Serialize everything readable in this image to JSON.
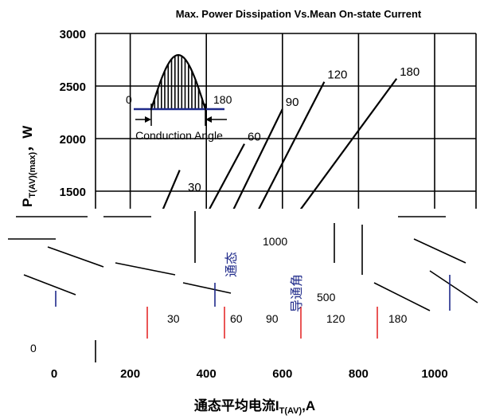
{
  "chart_data": {
    "type": "line",
    "title": "Max. Power Dissipation Vs.Mean On-state Current",
    "ylabel": {
      "main": "P",
      "sub": "T(AV)(max)",
      "tail": "，W"
    },
    "xlabel": {
      "main": "通态平均电流I",
      "sub": "T(AV)",
      "tail": ",A"
    },
    "xlim": [
      0,
      1100
    ],
    "ylim": [
      0,
      3000
    ],
    "x_ticks": [
      0,
      200,
      400,
      600,
      800,
      1000
    ],
    "x_tick_labels": [
      "0",
      "200",
      "400",
      "600",
      "800",
      "1000"
    ],
    "y_ticks": [
      1500,
      2000,
      2500,
      3000
    ],
    "y_tick_labels": [
      "1500",
      "2000",
      "2500",
      "3000"
    ],
    "series": [
      {
        "name": "30",
        "x": [
          200,
          330
        ],
        "y": [
          600,
          1700
        ]
      },
      {
        "name": "60",
        "x": [
          300,
          500
        ],
        "y": [
          600,
          1950
        ]
      },
      {
        "name": "90",
        "x": [
          360,
          600
        ],
        "y": [
          500,
          2280
        ]
      },
      {
        "name": "120",
        "x": [
          420,
          710
        ],
        "y": [
          500,
          2540
        ]
      },
      {
        "name": "180",
        "x": [
          480,
          900
        ],
        "y": [
          500,
          2570
        ]
      }
    ],
    "inset": {
      "left_label": "0",
      "right_label": "180",
      "caption": "Conduction Angle"
    },
    "lower_region_labels": [
      "30",
      "60",
      "90",
      "120",
      "180",
      "1000",
      "500",
      "0"
    ],
    "vertical_text": [
      "通态",
      "导通角"
    ]
  }
}
